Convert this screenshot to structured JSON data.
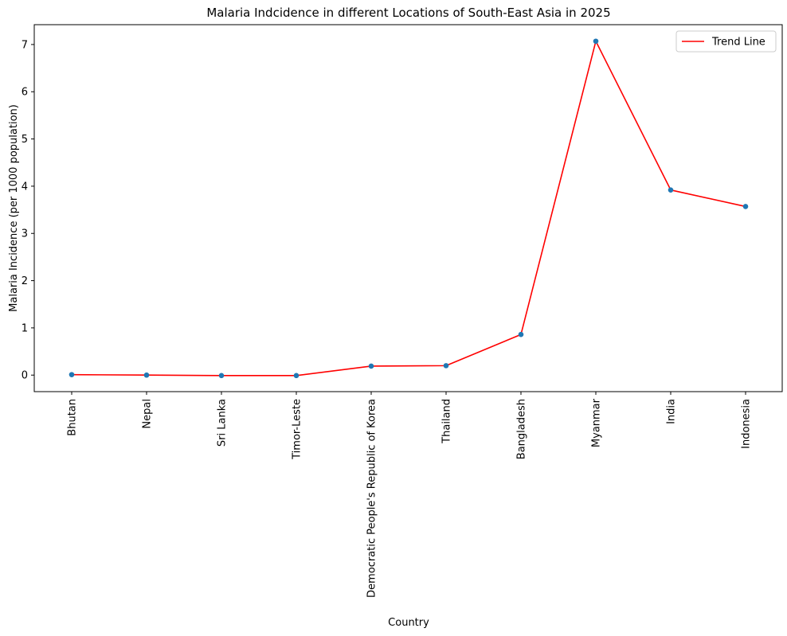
{
  "chart_data": {
    "type": "line",
    "title": "Malaria Indcidence in different Locations of South-East Asia in 2025",
    "xlabel": "Country",
    "ylabel": "Malaria Incidence (per 1000 population)",
    "categories": [
      "Bhutan",
      "Nepal",
      "Sri Lanka",
      "Timor-Leste",
      "Democratic People's Republic of Korea",
      "Thailand",
      "Bangladesh",
      "Myanmar",
      "India",
      "Indonesia"
    ],
    "series": [
      {
        "name": "Trend Line",
        "values": [
          0.01,
          0.0,
          -0.01,
          -0.01,
          0.19,
          0.2,
          0.86,
          7.07,
          3.92,
          3.57
        ],
        "line_color": "#ff0000",
        "marker_color": "#1f77b4"
      }
    ],
    "ylim": [
      -0.35,
      7.42
    ],
    "yticks": [
      0,
      1,
      2,
      3,
      4,
      5,
      6,
      7
    ],
    "grid": false,
    "legend_position": "top-right"
  }
}
